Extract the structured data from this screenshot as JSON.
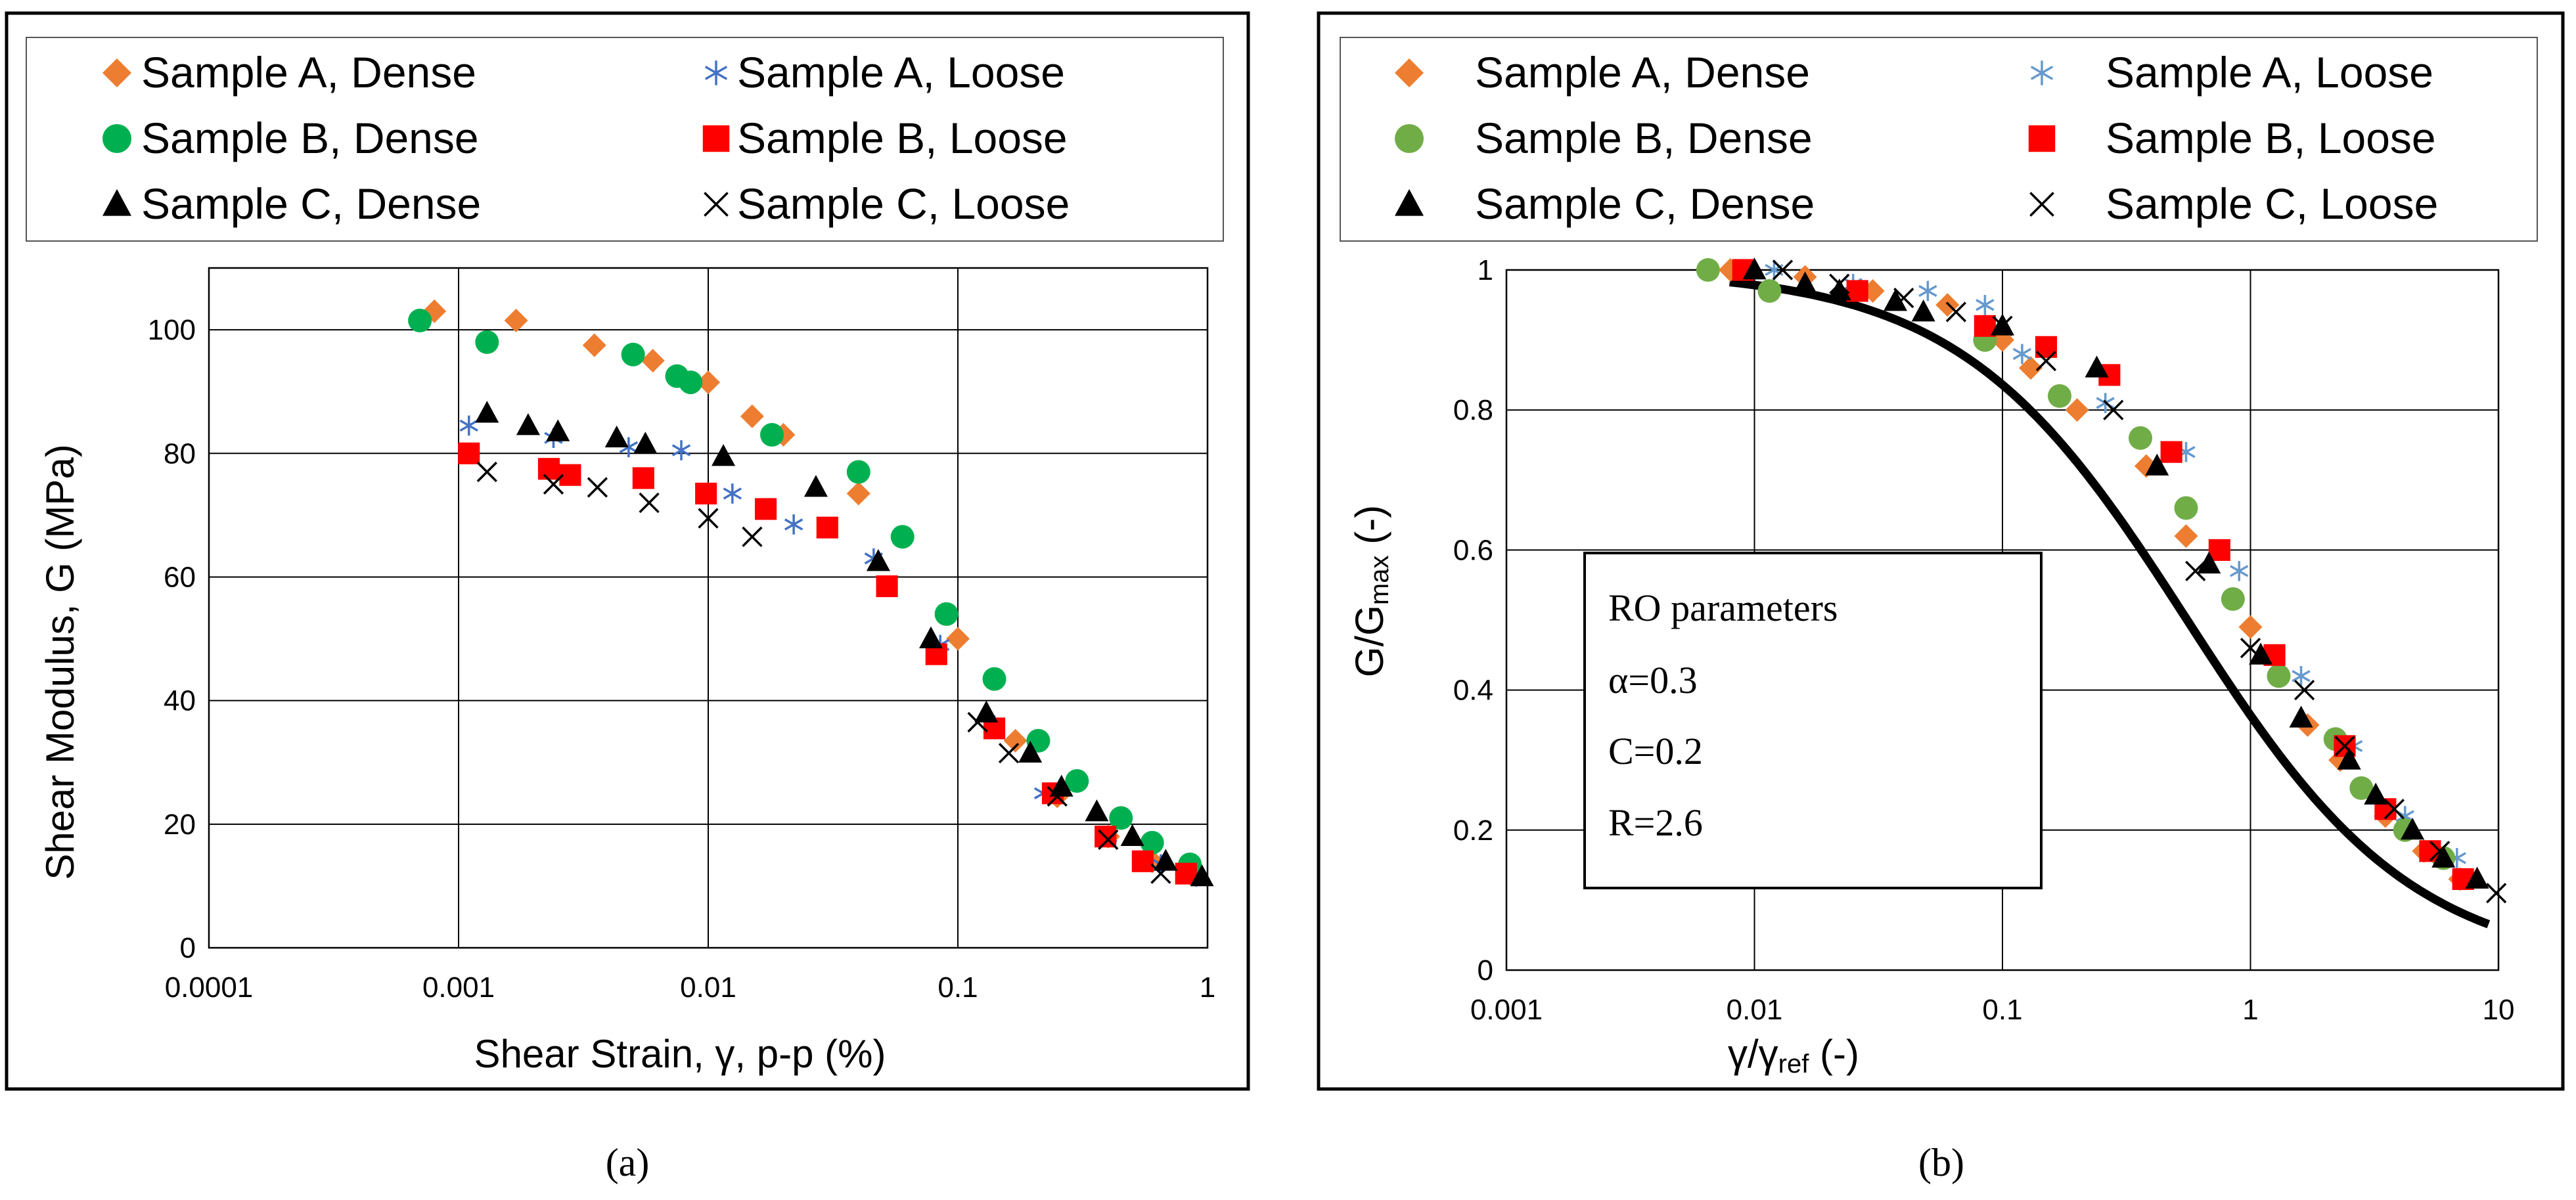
{
  "panel_labels": [
    "(a)",
    "(b)"
  ],
  "chart_data": [
    {
      "type": "scatter",
      "xlabel": "Shear Strain, γ, p-p (%)",
      "ylabel": "Shear Modulus, G (MPa)",
      "xscale": "log",
      "xlim": [
        0.0001,
        1
      ],
      "ylim": [
        0,
        110
      ],
      "x_ticks": [
        "0.0001",
        "0.001",
        "0.01",
        "0.1",
        "1"
      ],
      "y_ticks": [
        "0",
        "20",
        "40",
        "60",
        "80",
        "100"
      ],
      "grid": true,
      "legend": "top, two columns",
      "series": [
        {
          "name": "Sample A, Dense",
          "marker": "diamond",
          "color": "#ED7D31",
          "points": [
            [
              0.0008,
              103
            ],
            [
              0.0017,
              101.5
            ],
            [
              0.0035,
              97.5
            ],
            [
              0.006,
              95
            ],
            [
              0.01,
              91.5
            ],
            [
              0.015,
              86
            ],
            [
              0.02,
              83
            ],
            [
              0.04,
              73.5
            ],
            [
              0.1,
              50
            ],
            [
              0.17,
              33.5
            ],
            [
              0.25,
              24.5
            ],
            [
              0.4,
              18
            ],
            [
              0.6,
              14
            ],
            [
              0.85,
              12
            ]
          ]
        },
        {
          "name": "Sample A, Loose",
          "marker": "asterisk",
          "color": "#4472C4",
          "points": [
            [
              0.0011,
              84.5
            ],
            [
              0.0024,
              82.5
            ],
            [
              0.0048,
              81
            ],
            [
              0.0078,
              80.5
            ],
            [
              0.0125,
              73.5
            ],
            [
              0.022,
              68.5
            ],
            [
              0.046,
              63
            ],
            [
              0.085,
              49
            ],
            [
              0.14,
              36
            ],
            [
              0.22,
              25
            ],
            [
              0.4,
              18
            ],
            [
              0.65,
              13.5
            ],
            [
              0.9,
              11.5
            ]
          ]
        },
        {
          "name": "Sample B, Dense",
          "marker": "circle",
          "color": "#00B050",
          "points": [
            [
              0.0007,
              101.5
            ],
            [
              0.0013,
              98
            ],
            [
              0.005,
              96
            ],
            [
              0.0075,
              92.5
            ],
            [
              0.0085,
              91.5
            ],
            [
              0.018,
              83
            ],
            [
              0.04,
              77
            ],
            [
              0.06,
              66.5
            ],
            [
              0.09,
              54
            ],
            [
              0.14,
              43.5
            ],
            [
              0.21,
              33.5
            ],
            [
              0.3,
              27
            ],
            [
              0.45,
              21
            ],
            [
              0.6,
              17
            ],
            [
              0.85,
              13.5
            ]
          ]
        },
        {
          "name": "Sample B, Loose",
          "marker": "square",
          "color": "#FF0000",
          "points": [
            [
              0.0011,
              80
            ],
            [
              0.0023,
              77.5
            ],
            [
              0.0028,
              76.5
            ],
            [
              0.0055,
              76
            ],
            [
              0.0098,
              73.5
            ],
            [
              0.017,
              71
            ],
            [
              0.03,
              68
            ],
            [
              0.052,
              58.5
            ],
            [
              0.082,
              47.5
            ],
            [
              0.14,
              35.5
            ],
            [
              0.24,
              25
            ],
            [
              0.39,
              18
            ],
            [
              0.55,
              14
            ],
            [
              0.82,
              12
            ]
          ]
        },
        {
          "name": "Sample C, Dense",
          "marker": "triangle",
          "color": "#000000",
          "points": [
            [
              0.0013,
              86.5
            ],
            [
              0.0019,
              84.5
            ],
            [
              0.0025,
              83.5
            ],
            [
              0.0043,
              82.5
            ],
            [
              0.0056,
              81.5
            ],
            [
              0.0115,
              79.5
            ],
            [
              0.027,
              74.5
            ],
            [
              0.048,
              62.5
            ],
            [
              0.078,
              50
            ],
            [
              0.13,
              38
            ],
            [
              0.195,
              31.5
            ],
            [
              0.26,
              26
            ],
            [
              0.36,
              22
            ],
            [
              0.5,
              18
            ],
            [
              0.68,
              14
            ],
            [
              0.95,
              11.5
            ]
          ]
        },
        {
          "name": "Sample C, Loose",
          "marker": "x",
          "color": "#000000",
          "points": [
            [
              0.0013,
              77
            ],
            [
              0.0024,
              75
            ],
            [
              0.0036,
              74.5
            ],
            [
              0.0058,
              72
            ],
            [
              0.01,
              69.5
            ],
            [
              0.015,
              66.5
            ],
            [
              0.12,
              36.5
            ],
            [
              0.16,
              31.5
            ],
            [
              0.25,
              24.5
            ],
            [
              0.4,
              17.5
            ],
            [
              0.65,
              12
            ]
          ]
        }
      ]
    },
    {
      "type": "scatter",
      "xlabel_main": "γ/γ",
      "xlabel_sub": "ref",
      "xlabel_tail": " (-)",
      "ylabel_main": "G/G",
      "ylabel_sub": "max",
      "ylabel_tail": " (-)",
      "xscale": "log",
      "xlim": [
        0.001,
        10
      ],
      "ylim": [
        0,
        1
      ],
      "x_ticks": [
        "0.001",
        "0.01",
        "0.1",
        "1",
        "10"
      ],
      "y_ticks": [
        "0",
        "0.2",
        "0.4",
        "0.6",
        "0.8",
        "1"
      ],
      "grid": true,
      "legend": "top, two columns",
      "annotation": [
        "RO parameters",
        "α=0.3",
        "C=0.2",
        "R=2.6"
      ],
      "fit_curve": {
        "model": "Ramberg-Osgood",
        "alpha": 0.3,
        "C": 0.2,
        "R": 2.6,
        "color": "#000000"
      },
      "series": [
        {
          "name": "Sample A, Dense",
          "marker": "diamond",
          "color": "#ED7D31",
          "points": [
            [
              0.008,
              1.0
            ],
            [
              0.016,
              0.99
            ],
            [
              0.03,
              0.97
            ],
            [
              0.06,
              0.95
            ],
            [
              0.1,
              0.9
            ],
            [
              0.13,
              0.86
            ],
            [
              0.2,
              0.8
            ],
            [
              0.38,
              0.72
            ],
            [
              0.55,
              0.62
            ],
            [
              1.0,
              0.49
            ],
            [
              1.7,
              0.35
            ],
            [
              2.3,
              0.3
            ],
            [
              3.5,
              0.22
            ],
            [
              5,
              0.17
            ],
            [
              7,
              0.13
            ]
          ]
        },
        {
          "name": "Sample A, Loose",
          "marker": "asterisk",
          "color": "#6699CC",
          "points": [
            [
              0.012,
              1.0
            ],
            [
              0.025,
              0.98
            ],
            [
              0.05,
              0.97
            ],
            [
              0.085,
              0.95
            ],
            [
              0.12,
              0.88
            ],
            [
              0.26,
              0.81
            ],
            [
              0.55,
              0.74
            ],
            [
              0.9,
              0.57
            ],
            [
              1.6,
              0.42
            ],
            [
              2.6,
              0.32
            ],
            [
              4.2,
              0.22
            ],
            [
              6.8,
              0.16
            ]
          ]
        },
        {
          "name": "Sample B, Dense",
          "marker": "circle",
          "color": "#70AD47",
          "points": [
            [
              0.0065,
              1.0
            ],
            [
              0.0115,
              0.97
            ],
            [
              0.085,
              0.9
            ],
            [
              0.17,
              0.82
            ],
            [
              0.36,
              0.76
            ],
            [
              0.55,
              0.66
            ],
            [
              0.85,
              0.53
            ],
            [
              1.3,
              0.42
            ],
            [
              2.2,
              0.33
            ],
            [
              2.8,
              0.26
            ],
            [
              4.2,
              0.2
            ],
            [
              6,
              0.16
            ]
          ]
        },
        {
          "name": "Sample B, Loose",
          "marker": "square",
          "color": "#FF0000",
          "points": [
            [
              0.009,
              1.0
            ],
            [
              0.026,
              0.97
            ],
            [
              0.085,
              0.92
            ],
            [
              0.15,
              0.89
            ],
            [
              0.27,
              0.85
            ],
            [
              0.48,
              0.74
            ],
            [
              0.75,
              0.6
            ],
            [
              1.25,
              0.45
            ],
            [
              2.4,
              0.32
            ],
            [
              3.5,
              0.23
            ],
            [
              5.3,
              0.17
            ],
            [
              7.2,
              0.13
            ]
          ]
        },
        {
          "name": "Sample C, Dense",
          "marker": "triangle",
          "color": "#000000",
          "points": [
            [
              0.01,
              1.0
            ],
            [
              0.016,
              0.98
            ],
            [
              0.022,
              0.97
            ],
            [
              0.037,
              0.955
            ],
            [
              0.048,
              0.94
            ],
            [
              0.1,
              0.92
            ],
            [
              0.24,
              0.86
            ],
            [
              0.42,
              0.72
            ],
            [
              0.68,
              0.58
            ],
            [
              1.1,
              0.45
            ],
            [
              1.6,
              0.36
            ],
            [
              2.5,
              0.3
            ],
            [
              3.2,
              0.25
            ],
            [
              4.5,
              0.2
            ],
            [
              6,
              0.16
            ],
            [
              8.2,
              0.13
            ]
          ]
        },
        {
          "name": "Sample C, Loose",
          "marker": "x",
          "color": "#000000",
          "points": [
            [
              0.013,
              1.0
            ],
            [
              0.022,
              0.98
            ],
            [
              0.04,
              0.96
            ],
            [
              0.065,
              0.94
            ],
            [
              0.1,
              0.92
            ],
            [
              0.15,
              0.87
            ],
            [
              0.28,
              0.8
            ],
            [
              0.6,
              0.57
            ],
            [
              1.0,
              0.46
            ],
            [
              1.65,
              0.4
            ],
            [
              2.4,
              0.32
            ],
            [
              3.8,
              0.23
            ],
            [
              5.8,
              0.17
            ],
            [
              9.8,
              0.11
            ]
          ]
        }
      ]
    }
  ]
}
